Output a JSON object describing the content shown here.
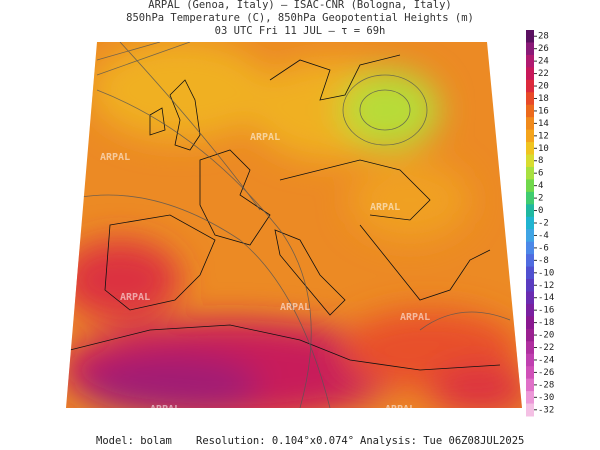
{
  "header": {
    "line1": "ARPAL (Genoa, Italy)  –  ISAC-CNR (Bologna, Italy)",
    "line2": "850hPa Temperature (C), 850hPa Geopotential Heights (m)",
    "line3": "03 UTC Fri 11 JUL  –  τ = 69h"
  },
  "map": {
    "watermark": "ARPAL"
  },
  "colorbar": {
    "ticks": [
      28,
      26,
      24,
      22,
      20,
      18,
      16,
      14,
      12,
      10,
      8,
      6,
      4,
      2,
      0,
      -2,
      -4,
      -6,
      -8,
      -10,
      -12,
      -14,
      -16,
      -18,
      -20,
      -22,
      -24,
      -26,
      -28,
      -30,
      -32
    ],
    "colors": [
      "#5a1060",
      "#8a1a78",
      "#b01a70",
      "#c8185a",
      "#dc2a3c",
      "#e84a28",
      "#ec6a1c",
      "#f08a1c",
      "#f4a41c",
      "#f0c420",
      "#d8dc30",
      "#a8e040",
      "#70d84c",
      "#40cc70",
      "#20b8a0",
      "#20b4d0",
      "#40a4e4",
      "#4c88e8",
      "#506ce0",
      "#5050d0",
      "#5a3cc0",
      "#6a2cb0",
      "#7a20a0",
      "#8a1890",
      "#9a2090",
      "#b030a0",
      "#c040b0",
      "#d050b8",
      "#e070c8",
      "#ec98d8",
      "#f4c0e4"
    ]
  },
  "footer": {
    "model": "Model: bolam",
    "resolution": "Resolution: 0.104°x0.074°",
    "analysis": "Analysis: Tue 06Z08JUL2025"
  }
}
